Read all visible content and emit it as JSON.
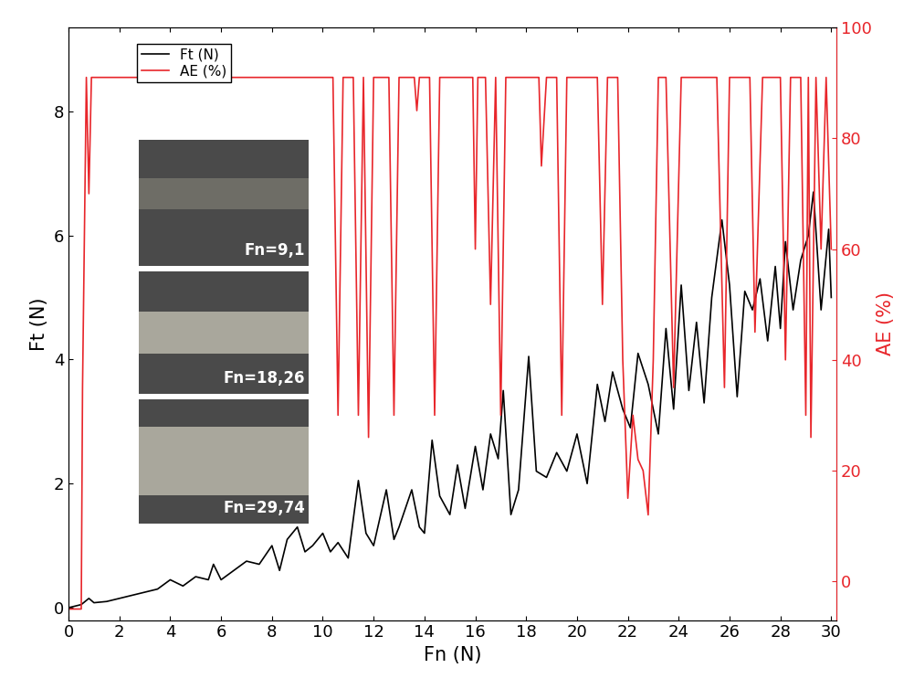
{
  "chart_data": {
    "type": "line",
    "x_label": "Fn (N)",
    "y_label": "Ft (N)",
    "y2_label": "AE (%)",
    "xlim": [
      0,
      30.2
    ],
    "xticks": [
      0,
      2,
      4,
      6,
      8,
      10,
      12,
      14,
      16,
      18,
      20,
      22,
      24,
      26,
      28,
      30
    ],
    "ylim": [
      -0.2,
      9.35
    ],
    "yticks": [
      0,
      2,
      4,
      6,
      8
    ],
    "y2lim": [
      -7,
      100
    ],
    "y2ticks": [
      0,
      20,
      40,
      60,
      80,
      100
    ],
    "legend": "upper left",
    "grid": false,
    "annotations": [
      "Fn=9,1",
      "Fn=18,26",
      "Fn=29,74"
    ],
    "series": [
      {
        "name": "Ft (N)",
        "color": "#000000",
        "axis": "y",
        "x": [
          0,
          0.5,
          0.8,
          1,
          1.5,
          2,
          2.5,
          3,
          3.5,
          4,
          4.5,
          5,
          5.5,
          5.7,
          6,
          6.5,
          7,
          7.5,
          8,
          8.3,
          8.6,
          9,
          9.3,
          9.6,
          10,
          10.3,
          10.6,
          11,
          11.4,
          11.7,
          12,
          12.5,
          12.8,
          13,
          13.5,
          13.8,
          14,
          14.3,
          14.6,
          15,
          15.3,
          15.6,
          16,
          16.3,
          16.6,
          16.9,
          17.1,
          17.4,
          17.7,
          18.1,
          18.4,
          18.8,
          19.2,
          19.6,
          20,
          20.4,
          20.8,
          21.1,
          21.4,
          21.8,
          22.1,
          22.4,
          22.8,
          23.2,
          23.5,
          23.8,
          24.1,
          24.4,
          24.7,
          25,
          25.3,
          25.7,
          26,
          26.3,
          26.6,
          26.9,
          27.2,
          27.5,
          27.8,
          28,
          28.2,
          28.5,
          28.8,
          29.1,
          29.3,
          29.6,
          29.9,
          30
        ],
        "values": [
          0,
          0.05,
          0.15,
          0.08,
          0.1,
          0.15,
          0.2,
          0.25,
          0.3,
          0.45,
          0.35,
          0.5,
          0.45,
          0.7,
          0.45,
          0.6,
          0.75,
          0.7,
          1.0,
          0.6,
          1.1,
          1.3,
          0.9,
          1.0,
          1.2,
          0.9,
          1.05,
          0.8,
          2.05,
          1.2,
          1.0,
          1.9,
          1.1,
          1.3,
          1.9,
          1.3,
          1.2,
          2.7,
          1.8,
          1.5,
          2.3,
          1.6,
          2.6,
          1.9,
          2.8,
          2.4,
          3.5,
          1.5,
          1.9,
          4.05,
          2.2,
          2.1,
          2.5,
          2.2,
          2.8,
          2.0,
          3.6,
          3.0,
          3.8,
          3.2,
          2.9,
          4.1,
          3.6,
          2.8,
          4.5,
          3.2,
          5.2,
          3.5,
          4.6,
          3.3,
          5.0,
          6.25,
          5.2,
          3.4,
          5.1,
          4.8,
          5.3,
          4.3,
          5.5,
          4.5,
          5.9,
          4.8,
          5.6,
          6.0,
          6.7,
          4.8,
          6.1,
          5.0
        ]
      },
      {
        "name": "AE (%)",
        "color": "#e8262b",
        "axis": "y2",
        "x": [
          0,
          0.5,
          0.55,
          0.7,
          0.8,
          0.9,
          10.4,
          10.6,
          10.8,
          11.2,
          11.4,
          11.6,
          11.8,
          12,
          12.6,
          12.8,
          13,
          13.6,
          13.7,
          13.8,
          14.2,
          14.4,
          14.6,
          15.9,
          16.0,
          16.1,
          16.4,
          16.6,
          16.8,
          17.0,
          17.2,
          18.5,
          18.6,
          18.8,
          19.2,
          19.4,
          19.6,
          20.8,
          21.0,
          21.2,
          21.6,
          21.8,
          22.0,
          22.2,
          22.4,
          22.6,
          22.8,
          23.0,
          23.2,
          23.5,
          23.8,
          24.1,
          25.5,
          25.8,
          26,
          26.8,
          27.0,
          27.3,
          28.0,
          28.2,
          28.4,
          28.8,
          29.0,
          29.1,
          29.2,
          29.4,
          29.6,
          29.8,
          30
        ],
        "values": [
          -5,
          -5,
          35,
          91,
          70,
          91,
          91,
          30,
          91,
          91,
          30,
          91,
          26,
          91,
          91,
          30,
          91,
          91,
          85,
          91,
          91,
          30,
          91,
          91,
          60,
          91,
          91,
          50,
          91,
          30,
          91,
          91,
          75,
          91,
          91,
          30,
          91,
          91,
          50,
          91,
          91,
          40,
          15,
          30,
          22,
          20,
          12,
          40,
          91,
          91,
          35,
          91,
          91,
          35,
          91,
          91,
          45,
          91,
          91,
          40,
          91,
          91,
          30,
          91,
          26,
          91,
          60,
          91,
          60
        ]
      }
    ]
  }
}
